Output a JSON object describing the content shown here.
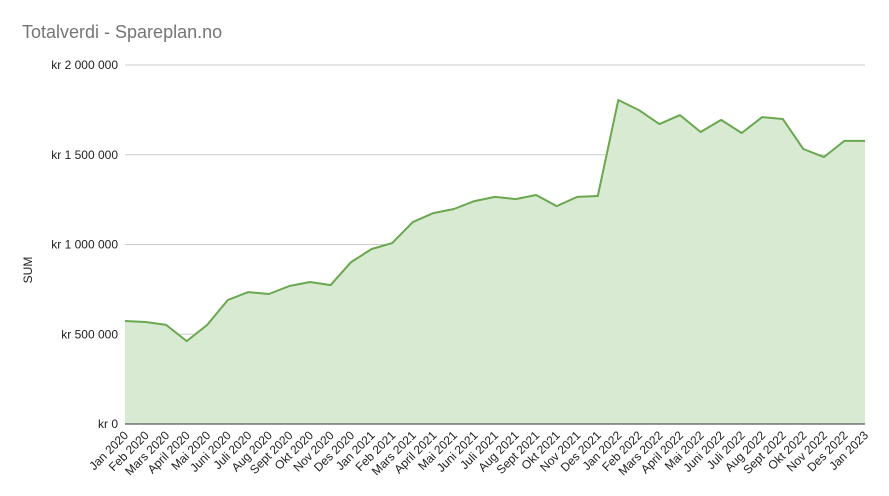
{
  "chart_data": {
    "type": "area",
    "title": "Totalverdi - Spareplan.no",
    "y_label": "SUM",
    "categories": [
      "Jan 2020",
      "Feb 2020",
      "Mars 2020",
      "April 2020",
      "Mai 2020",
      "Juni 2020",
      "Juli 2020",
      "Aug 2020",
      "Sept 2020",
      "Okt 2020",
      "Nov 2020",
      "Des 2020",
      "Jan 2021",
      "Feb 2021",
      "Mars 2021",
      "April 2021",
      "Mai 2021",
      "Juni 2021",
      "Juli 2021",
      "Aug 2021",
      "Sept 2021",
      "Okt 2021",
      "Nov 2021",
      "Des 2021",
      "Jan 2022",
      "Feb 2022",
      "Mars 2022",
      "April 2022",
      "Mai 2022",
      "Juni 2022",
      "Juli 2022",
      "Aug 2022",
      "Sept 2022",
      "Okt 2022",
      "Nov 2022",
      "Des 2022",
      "Jan 2023"
    ],
    "values": [
      574000,
      568000,
      552000,
      462000,
      552000,
      691000,
      735000,
      724000,
      769000,
      791000,
      774000,
      902000,
      975000,
      1008000,
      1125000,
      1175000,
      1198000,
      1242000,
      1265000,
      1253000,
      1276000,
      1214000,
      1265000,
      1270000,
      1805000,
      1749000,
      1671000,
      1721000,
      1627000,
      1694000,
      1621000,
      1710000,
      1699000,
      1532000,
      1487000,
      1577000,
      1577000
    ],
    "color": "#6aa84f",
    "fill_color": "#d9ead3",
    "ylim": [
      0,
      2000000
    ],
    "yticks": [
      {
        "value": 0,
        "label": "kr 0"
      },
      {
        "value": 500000,
        "label": "kr 500 000"
      },
      {
        "value": 1000000,
        "label": "kr 1 000 000"
      },
      {
        "value": 1500000,
        "label": "kr 1 500 000"
      },
      {
        "value": 2000000,
        "label": "kr 2 000 000"
      }
    ],
    "grid": true
  }
}
